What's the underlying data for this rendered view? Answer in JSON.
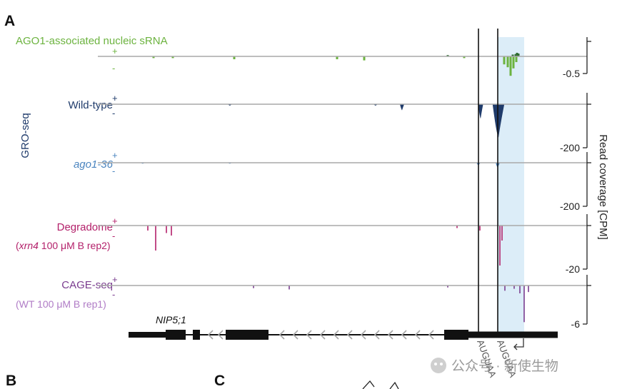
{
  "panels": {
    "a": "A",
    "b": "B",
    "c": "C"
  },
  "group_label": "GRO-seq",
  "y_axis_title": "Read coverage [CPM]",
  "gene_name": "NIP5;1",
  "watermark": "公众号 · 新使生物",
  "motifs": [
    "AUGUAA",
    "AUGUAA"
  ],
  "colors": {
    "agosrna": "#6cb33f",
    "agosrna_dark": "#2e6b30",
    "wildtype": "#1f3b6b",
    "ago136": "#4a84bf",
    "degradome": "#b3206a",
    "cage": "#7a3c8f",
    "cage_sub": "#b07cc6",
    "highlight": "#dcedf8",
    "baseline": "#a9a9a9"
  },
  "tracks": [
    {
      "id": "agosrna",
      "label": "AGO1-associated nucleic sRNA",
      "plus": "+",
      "minus": "-",
      "scale_label": "-0.5"
    },
    {
      "id": "wildtype",
      "label": "Wild-type",
      "plus": "+",
      "minus": "-",
      "scale_label": "-200"
    },
    {
      "id": "ago136",
      "label": "ago1-36",
      "plus": "+",
      "minus": "-",
      "scale_label": "-200"
    },
    {
      "id": "degradome",
      "label": "Degradome",
      "sublabel_italic": "xrn4",
      "sublabel_rest": " 100 μM B rep2)",
      "plus": "+",
      "minus": "-",
      "scale_label": "-20"
    },
    {
      "id": "cage",
      "label": "CAGE-seq",
      "sublabel": "(WT 100 μM B rep1)",
      "plus": "+",
      "minus": "-",
      "scale_label": "-6"
    }
  ],
  "chart_data": {
    "type": "genome-browser-coverage",
    "y_unit": "CPM",
    "tracks": [
      {
        "name": "AGO1-associated nucleic sRNA",
        "minus_scale": -0.5,
        "plus_peaks": [
          [
            627,
            0.05
          ],
          [
            718,
            0.07
          ],
          [
            722,
            0.09
          ],
          [
            724,
            0.14
          ],
          [
            726,
            0.11
          ]
        ],
        "minus_peaks": [
          [
            215,
            -0.03
          ],
          [
            242,
            -0.03
          ],
          [
            328,
            -0.05
          ],
          [
            472,
            -0.05
          ],
          [
            510,
            -0.07
          ],
          [
            650,
            -0.03
          ],
          [
            706,
            -0.14
          ],
          [
            711,
            -0.19
          ],
          [
            715,
            -0.34
          ],
          [
            719,
            -0.21
          ],
          [
            723,
            -0.1
          ]
        ]
      },
      {
        "name": "Wild-type",
        "minus_scale": -200,
        "minus_peaks": [
          [
            322,
            -5
          ],
          [
            526,
            -5
          ],
          [
            563,
            -22
          ],
          [
            673,
            -52
          ],
          [
            698,
            -120
          ]
        ]
      },
      {
        "name": "ago1-36",
        "minus_scale": -200,
        "minus_peaks": [
          [
            200,
            -4
          ],
          [
            322,
            -4
          ],
          [
            670,
            -10
          ],
          [
            697,
            -20
          ]
        ]
      },
      {
        "name": "Degradome (xrn4 100 μM B rep2)",
        "minus_scale": -20,
        "minus_peaks": [
          [
            207,
            -2
          ],
          [
            218,
            -10
          ],
          [
            233,
            -3
          ],
          [
            240,
            -4
          ],
          [
            640,
            -1
          ],
          [
            672,
            -2
          ],
          [
            700,
            -16
          ],
          [
            703,
            -6
          ]
        ]
      },
      {
        "name": "CAGE-seq (WT 100 μM B rep1)",
        "minus_scale": -6,
        "minus_peaks": [
          [
            355,
            -0.4
          ],
          [
            405,
            -0.6
          ],
          [
            627,
            -0.3
          ],
          [
            707,
            -0.8
          ],
          [
            720,
            -0.5
          ],
          [
            728,
            -1.2
          ],
          [
            734,
            -5.6
          ],
          [
            740,
            -1.0
          ]
        ]
      }
    ],
    "annotations": {
      "gene": "NIP5;1",
      "strand": "minus",
      "highlight_region": "AUGUAA site window",
      "motif_sites": [
        "AUGUAA",
        "AUGUAA"
      ]
    }
  }
}
